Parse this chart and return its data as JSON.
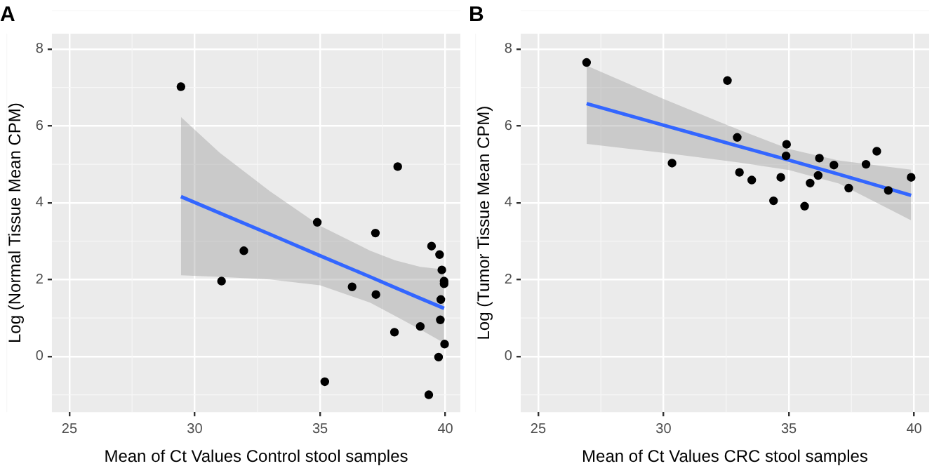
{
  "chart_data": [
    {
      "type": "scatter",
      "title": "A",
      "xlabel": "Mean of Ct Values Control stool samples",
      "ylabel": "Log (Normal Tissue Mean CPM)",
      "xlim": [
        24.3,
        40.6
      ],
      "ylim": [
        -1.45,
        8.4
      ],
      "xticks": [
        25,
        30,
        35,
        40
      ],
      "yticks": [
        0,
        2,
        4,
        6,
        8
      ],
      "grid": true,
      "legend": false,
      "series": [
        {
          "marker": "circle",
          "color": "#000000",
          "x": [
            29.45,
            31.07,
            31.96,
            34.89,
            35.19,
            36.28,
            37.21,
            37.23,
            37.97,
            38.1,
            39.0,
            39.45,
            39.34,
            39.77,
            39.86,
            39.82,
            39.8,
            39.95,
            39.95,
            39.97,
            39.73
          ],
          "values": [
            7.02,
            1.96,
            2.75,
            3.49,
            -0.66,
            1.81,
            3.21,
            1.61,
            0.63,
            4.94,
            0.78,
            2.87,
            -1.0,
            2.65,
            2.25,
            1.48,
            0.95,
            1.96,
            1.89,
            0.32,
            -0.02
          ]
        },
        {
          "type": "line",
          "marker": "none",
          "color": "#3366ff",
          "x": [
            29.45,
            31,
            33,
            35,
            37,
            38,
            39,
            39.95
          ],
          "values": [
            4.16,
            3.73,
            3.18,
            2.62,
            2.07,
            1.79,
            1.51,
            1.25
          ],
          "lower": [
            2.11,
            2.07,
            2.0,
            1.85,
            1.4,
            1.05,
            0.7,
            0.35
          ],
          "upper": [
            6.23,
            5.3,
            4.3,
            3.4,
            2.75,
            2.5,
            2.33,
            2.26
          ]
        }
      ]
    },
    {
      "type": "scatter",
      "title": "B",
      "xlabel": "Mean of Ct Values CRC stool samples",
      "ylabel": "Log (Tumor Tissue Mean CPM)",
      "xlim": [
        24.3,
        40.6
      ],
      "ylim": [
        -1.45,
        8.4
      ],
      "xticks": [
        25,
        30,
        35,
        40
      ],
      "yticks": [
        0,
        2,
        4,
        6,
        8
      ],
      "grid": true,
      "legend": false,
      "series": [
        {
          "marker": "circle",
          "color": "#000000",
          "x": [
            26.93,
            30.34,
            32.55,
            32.94,
            33.03,
            33.52,
            34.39,
            34.68,
            34.89,
            34.91,
            35.63,
            35.85,
            36.17,
            36.22,
            36.8,
            37.39,
            38.08,
            38.51,
            38.97,
            39.88
          ],
          "values": [
            7.65,
            5.03,
            7.18,
            5.7,
            4.79,
            4.59,
            4.05,
            4.66,
            5.22,
            5.52,
            3.91,
            4.51,
            4.71,
            5.16,
            4.98,
            4.38,
            5.0,
            5.34,
            4.32,
            4.66
          ]
        },
        {
          "type": "line",
          "marker": "none",
          "color": "#3366ff",
          "x": [
            26.93,
            30,
            33,
            35,
            37,
            39.88
          ],
          "values": [
            6.58,
            6.02,
            5.47,
            5.11,
            4.74,
            4.19
          ],
          "lower": [
            5.53,
            5.3,
            5.05,
            4.85,
            4.5,
            3.54
          ],
          "upper": [
            7.57,
            6.7,
            5.9,
            5.4,
            5.1,
            4.86
          ]
        }
      ]
    }
  ]
}
